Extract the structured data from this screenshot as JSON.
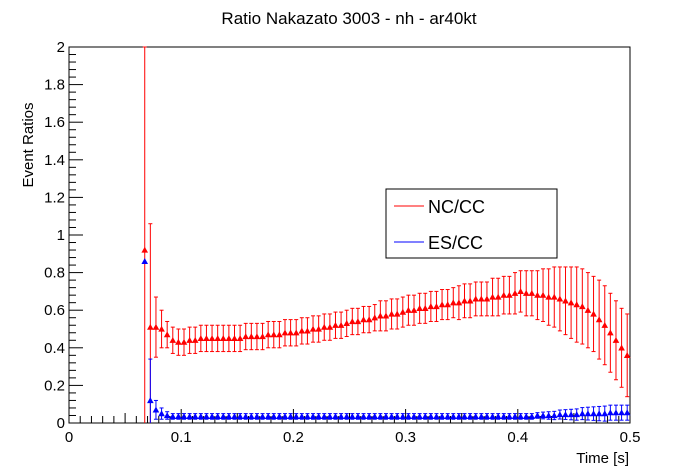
{
  "chart_data": {
    "type": "scatter",
    "title": "Ratio Nakazato 3003 - nh - ar40kt",
    "xlabel": "Time [s]",
    "ylabel": "Event Ratios",
    "xlim": [
      0,
      0.5
    ],
    "ylim": [
      0,
      2
    ],
    "x_ticks": [
      "0",
      "0.1",
      "0.2",
      "0.3",
      "0.4",
      "0.5"
    ],
    "y_ticks": [
      "0",
      "0.2",
      "0.4",
      "0.6",
      "0.8",
      "1",
      "1.2",
      "1.4",
      "1.6",
      "1.8",
      "2"
    ],
    "grid": false,
    "legend_position": "center-right",
    "colors": {
      "nc_cc": "#ff0000",
      "es_cc": "#0000ff"
    },
    "series": [
      {
        "name": "NC/CC",
        "color": "#ff0000",
        "marker": "triangle",
        "x": [
          0.0675,
          0.0725,
          0.0775,
          0.0825,
          0.0875,
          0.0925,
          0.0975,
          0.1025,
          0.1075,
          0.1125,
          0.1175,
          0.1225,
          0.1275,
          0.1325,
          0.1375,
          0.1425,
          0.1475,
          0.1525,
          0.1575,
          0.1625,
          0.1675,
          0.1725,
          0.1775,
          0.1825,
          0.1875,
          0.1925,
          0.1975,
          0.2025,
          0.2075,
          0.2125,
          0.2175,
          0.2225,
          0.2275,
          0.2325,
          0.2375,
          0.2425,
          0.2475,
          0.2525,
          0.2575,
          0.2625,
          0.2675,
          0.2725,
          0.2775,
          0.2825,
          0.2875,
          0.2925,
          0.2975,
          0.3025,
          0.3075,
          0.3125,
          0.3175,
          0.3225,
          0.3275,
          0.3325,
          0.3375,
          0.3425,
          0.3475,
          0.3525,
          0.3575,
          0.3625,
          0.3675,
          0.3725,
          0.3775,
          0.3825,
          0.3875,
          0.3925,
          0.3975,
          0.4025,
          0.4075,
          0.4125,
          0.4175,
          0.4225,
          0.4275,
          0.4325,
          0.4375,
          0.4425,
          0.4475,
          0.4525,
          0.4575,
          0.4625,
          0.4675,
          0.4725,
          0.4775,
          0.4825,
          0.4875,
          0.4925,
          0.4975
        ],
        "y": [
          0.92,
          0.51,
          0.51,
          0.5,
          0.47,
          0.44,
          0.43,
          0.43,
          0.44,
          0.44,
          0.45,
          0.45,
          0.45,
          0.45,
          0.45,
          0.45,
          0.45,
          0.45,
          0.46,
          0.46,
          0.46,
          0.46,
          0.47,
          0.47,
          0.47,
          0.48,
          0.48,
          0.48,
          0.49,
          0.49,
          0.5,
          0.5,
          0.51,
          0.51,
          0.52,
          0.52,
          0.53,
          0.54,
          0.54,
          0.55,
          0.55,
          0.56,
          0.57,
          0.57,
          0.58,
          0.58,
          0.59,
          0.6,
          0.6,
          0.61,
          0.61,
          0.62,
          0.62,
          0.63,
          0.63,
          0.64,
          0.64,
          0.65,
          0.65,
          0.66,
          0.66,
          0.66,
          0.67,
          0.67,
          0.68,
          0.68,
          0.69,
          0.7,
          0.69,
          0.69,
          0.68,
          0.68,
          0.67,
          0.67,
          0.66,
          0.65,
          0.64,
          0.63,
          0.62,
          0.6,
          0.58,
          0.55,
          0.52,
          0.48,
          0.44,
          0.4,
          0.36
        ],
        "err": [
          1.08,
          0.55,
          0.16,
          0.1,
          0.07,
          0.07,
          0.07,
          0.07,
          0.07,
          0.07,
          0.07,
          0.07,
          0.07,
          0.07,
          0.07,
          0.07,
          0.07,
          0.07,
          0.07,
          0.07,
          0.07,
          0.07,
          0.07,
          0.07,
          0.07,
          0.07,
          0.07,
          0.07,
          0.07,
          0.07,
          0.07,
          0.07,
          0.07,
          0.07,
          0.07,
          0.07,
          0.07,
          0.07,
          0.07,
          0.07,
          0.07,
          0.07,
          0.08,
          0.08,
          0.08,
          0.08,
          0.08,
          0.08,
          0.08,
          0.08,
          0.08,
          0.08,
          0.08,
          0.08,
          0.08,
          0.08,
          0.09,
          0.09,
          0.09,
          0.09,
          0.09,
          0.09,
          0.1,
          0.1,
          0.1,
          0.1,
          0.11,
          0.11,
          0.12,
          0.12,
          0.13,
          0.14,
          0.15,
          0.16,
          0.17,
          0.18,
          0.19,
          0.2,
          0.2,
          0.2,
          0.2,
          0.21,
          0.21,
          0.21,
          0.21,
          0.21,
          0.22
        ]
      },
      {
        "name": "ES/CC",
        "color": "#0000ff",
        "marker": "triangle",
        "x": [
          0.0675,
          0.0725,
          0.0775,
          0.0825,
          0.0875,
          0.0925,
          0.0975,
          0.1025,
          0.1075,
          0.1125,
          0.1175,
          0.1225,
          0.1275,
          0.1325,
          0.1375,
          0.1425,
          0.1475,
          0.1525,
          0.1575,
          0.1625,
          0.1675,
          0.1725,
          0.1775,
          0.1825,
          0.1875,
          0.1925,
          0.1975,
          0.2025,
          0.2075,
          0.2125,
          0.2175,
          0.2225,
          0.2275,
          0.2325,
          0.2375,
          0.2425,
          0.2475,
          0.2525,
          0.2575,
          0.2625,
          0.2675,
          0.2725,
          0.2775,
          0.2825,
          0.2875,
          0.2925,
          0.2975,
          0.3025,
          0.3075,
          0.3125,
          0.3175,
          0.3225,
          0.3275,
          0.3325,
          0.3375,
          0.3425,
          0.3475,
          0.3525,
          0.3575,
          0.3625,
          0.3675,
          0.3725,
          0.3775,
          0.3825,
          0.3875,
          0.3925,
          0.3975,
          0.4025,
          0.4075,
          0.4125,
          0.4175,
          0.4225,
          0.4275,
          0.4325,
          0.4375,
          0.4425,
          0.4475,
          0.4525,
          0.4575,
          0.4625,
          0.4675,
          0.4725,
          0.4775,
          0.4825,
          0.4875,
          0.4925,
          0.4975
        ],
        "y": [
          0.86,
          0.12,
          0.07,
          0.05,
          0.04,
          0.035,
          0.035,
          0.035,
          0.035,
          0.035,
          0.035,
          0.035,
          0.035,
          0.035,
          0.035,
          0.035,
          0.035,
          0.035,
          0.035,
          0.035,
          0.035,
          0.035,
          0.035,
          0.035,
          0.035,
          0.035,
          0.035,
          0.035,
          0.035,
          0.035,
          0.035,
          0.035,
          0.035,
          0.035,
          0.035,
          0.035,
          0.035,
          0.035,
          0.035,
          0.035,
          0.035,
          0.035,
          0.035,
          0.035,
          0.035,
          0.035,
          0.035,
          0.035,
          0.035,
          0.035,
          0.035,
          0.035,
          0.035,
          0.035,
          0.035,
          0.035,
          0.035,
          0.035,
          0.035,
          0.035,
          0.035,
          0.035,
          0.035,
          0.035,
          0.035,
          0.035,
          0.035,
          0.035,
          0.035,
          0.035,
          0.04,
          0.04,
          0.04,
          0.04,
          0.045,
          0.045,
          0.045,
          0.045,
          0.05,
          0.05,
          0.05,
          0.05,
          0.05,
          0.055,
          0.055,
          0.055,
          0.055
        ],
        "err": [
          0.0,
          0.22,
          0.05,
          0.03,
          0.02,
          0.015,
          0.015,
          0.015,
          0.015,
          0.015,
          0.015,
          0.015,
          0.015,
          0.015,
          0.015,
          0.015,
          0.015,
          0.015,
          0.015,
          0.015,
          0.015,
          0.015,
          0.015,
          0.015,
          0.015,
          0.015,
          0.015,
          0.015,
          0.015,
          0.015,
          0.015,
          0.015,
          0.015,
          0.015,
          0.015,
          0.015,
          0.015,
          0.015,
          0.015,
          0.015,
          0.015,
          0.015,
          0.015,
          0.015,
          0.015,
          0.015,
          0.015,
          0.015,
          0.015,
          0.015,
          0.015,
          0.015,
          0.015,
          0.015,
          0.015,
          0.015,
          0.015,
          0.015,
          0.015,
          0.015,
          0.015,
          0.015,
          0.015,
          0.015,
          0.015,
          0.015,
          0.015,
          0.015,
          0.015,
          0.015,
          0.015,
          0.018,
          0.02,
          0.022,
          0.024,
          0.026,
          0.028,
          0.03,
          0.032,
          0.034,
          0.036,
          0.038,
          0.04,
          0.04,
          0.04,
          0.04,
          0.04
        ]
      }
    ]
  }
}
